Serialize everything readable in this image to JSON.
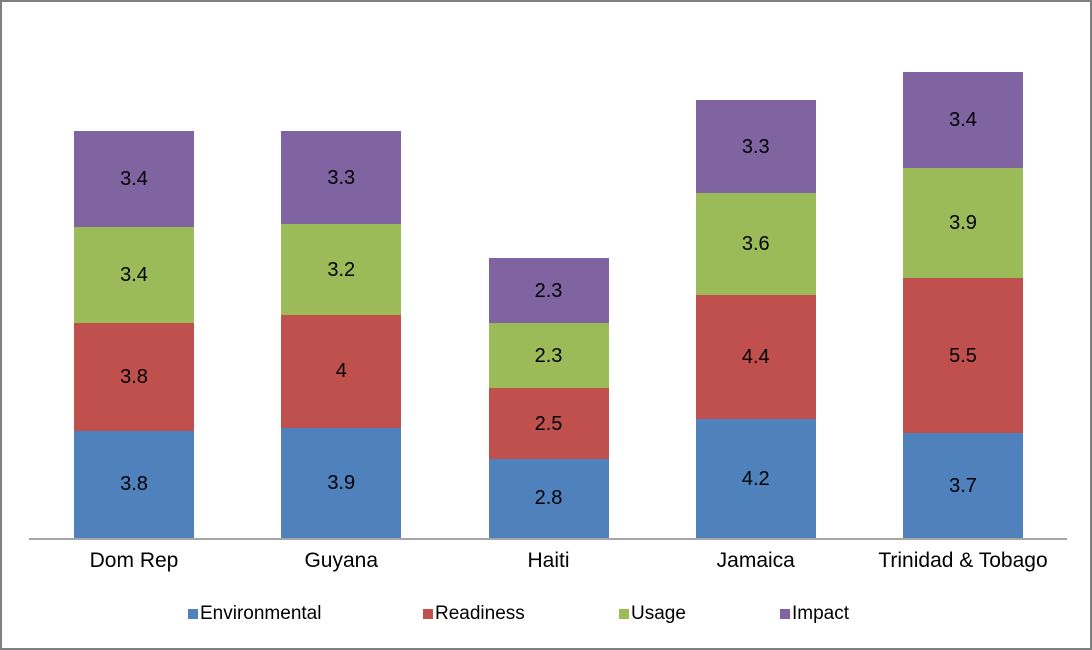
{
  "chart_data": {
    "type": "bar",
    "subtype": "stacked-column",
    "title": "",
    "xlabel": "",
    "ylabel": "",
    "grid": false,
    "y_axis_visible": false,
    "value_labels": true,
    "legend_position": "bottom",
    "categories": [
      "Dom Rep",
      "Guyana",
      "Haiti",
      "Jamaica",
      "Trinidad & Tobago"
    ],
    "series": [
      {
        "name": "Environmental",
        "color": "#4F81BD",
        "values": [
          3.8,
          3.9,
          2.8,
          4.2,
          3.7
        ]
      },
      {
        "name": "Readiness",
        "color": "#C0504D",
        "values": [
          3.8,
          4,
          2.5,
          4.4,
          5.5
        ]
      },
      {
        "name": "Usage",
        "color": "#9BBB59",
        "values": [
          3.4,
          3.2,
          2.3,
          3.6,
          3.9
        ]
      },
      {
        "name": "Impact",
        "color": "#8064A2",
        "values": [
          3.4,
          3.3,
          2.3,
          3.3,
          3.4
        ]
      }
    ],
    "totals": [
      14.4,
      14.4,
      9.9,
      15.5,
      16.5
    ],
    "axis_color": "#A6A6A6",
    "border_color": "#7F7F7F",
    "background_color": "#FFFFFF",
    "label_color": "#000000"
  }
}
